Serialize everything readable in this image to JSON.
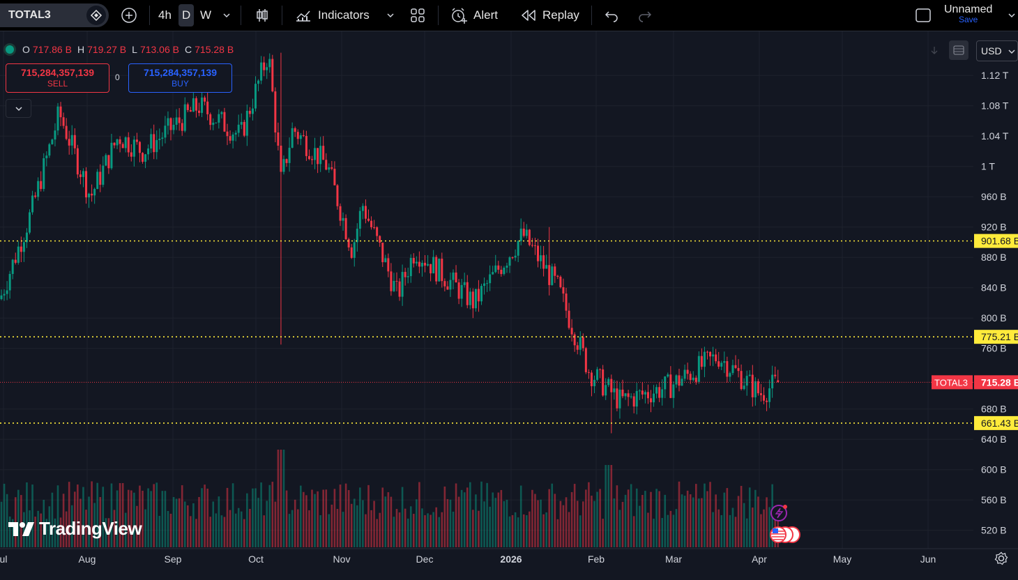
{
  "toolbar": {
    "symbol": "TOTAL3",
    "timeframes": [
      "4h",
      "D",
      "W"
    ],
    "active_timeframe": "D",
    "indicators_label": "Indicators",
    "alert_label": "Alert",
    "replay_label": "Replay",
    "layout_name": "Unnamed",
    "save_label": "Save"
  },
  "legend": {
    "o_label": "O",
    "o_value": "717.86 B",
    "h_label": "H",
    "h_value": "719.27 B",
    "l_label": "L",
    "l_value": "713.06 B",
    "c_label": "C",
    "c_value": "715.28 B"
  },
  "trade": {
    "sell_price": "715,284,357,139",
    "sell_label": "SELL",
    "spread": "0",
    "buy_price": "715,284,357,139",
    "buy_label": "BUY"
  },
  "currency": "USD",
  "logo_text": "TradingView",
  "colors": {
    "up": "#089981",
    "down": "#f23645",
    "level_line": "#ffeb3b",
    "background": "#131722"
  },
  "chart_data": {
    "type": "candlestick",
    "symbol": "TOTAL3",
    "y_unit": "B",
    "ylim": [
      500,
      1160
    ],
    "y_ticks": [
      {
        "value": 1120,
        "label": "1.12 T"
      },
      {
        "value": 1080,
        "label": "1.08 T"
      },
      {
        "value": 1040,
        "label": "1.04 T"
      },
      {
        "value": 1000,
        "label": "1 T"
      },
      {
        "value": 960,
        "label": "960 B"
      },
      {
        "value": 920,
        "label": "920 B"
      },
      {
        "value": 880,
        "label": "880 B"
      },
      {
        "value": 840,
        "label": "840 B"
      },
      {
        "value": 800,
        "label": "800 B"
      },
      {
        "value": 760,
        "label": "760 B"
      },
      {
        "value": 680,
        "label": "680 B"
      },
      {
        "value": 640,
        "label": "640 B"
      },
      {
        "value": 600,
        "label": "600 B"
      },
      {
        "value": 560,
        "label": "560 B"
      },
      {
        "value": 520,
        "label": "520 B"
      }
    ],
    "x_ticks": [
      {
        "label": "ul",
        "bold": false
      },
      {
        "label": "Aug",
        "bold": false
      },
      {
        "label": "Sep",
        "bold": false
      },
      {
        "label": "Oct",
        "bold": false
      },
      {
        "label": "Nov",
        "bold": false
      },
      {
        "label": "Dec",
        "bold": false
      },
      {
        "label": "2026",
        "bold": true
      },
      {
        "label": "Feb",
        "bold": false
      },
      {
        "label": "Mar",
        "bold": false
      },
      {
        "label": "Apr",
        "bold": false
      },
      {
        "label": "May",
        "bold": false
      },
      {
        "label": "Jun",
        "bold": false
      }
    ],
    "horizontal_levels": [
      {
        "value": 901.68,
        "label": "901.68 B"
      },
      {
        "value": 775.21,
        "label": "775.21 B"
      },
      {
        "value": 661.43,
        "label": "661.43 B"
      }
    ],
    "last_price": {
      "value": 715.28,
      "label": "715.28 B",
      "symbol_tag": "TOTAL3"
    },
    "last_candle": {
      "open": 717.86,
      "high": 719.27,
      "low": 713.06,
      "close": 715.28
    },
    "path_keypoints": [
      {
        "month": "Jul",
        "close": 825
      },
      {
        "month": "Jul",
        "close": 940
      },
      {
        "month": "Aug",
        "close": 1070
      },
      {
        "month": "Aug",
        "close": 960
      },
      {
        "month": "Aug",
        "close": 1040
      },
      {
        "month": "Sep",
        "close": 1020
      },
      {
        "month": "Sep",
        "close": 1080
      },
      {
        "month": "Oct",
        "close": 1040
      },
      {
        "month": "Oct",
        "close": 1150
      },
      {
        "month": "Oct",
        "close": 980
      },
      {
        "month": "Oct",
        "close": 1050
      },
      {
        "month": "Nov",
        "close": 1000
      },
      {
        "month": "Nov",
        "close": 890
      },
      {
        "month": "Nov",
        "close": 950
      },
      {
        "month": "Nov",
        "close": 830
      },
      {
        "month": "Dec",
        "close": 890
      },
      {
        "month": "Dec",
        "close": 820
      },
      {
        "month": "Jan",
        "close": 910
      },
      {
        "month": "Jan",
        "close": 840
      },
      {
        "month": "Jan",
        "close": 730
      },
      {
        "month": "Feb",
        "close": 690
      },
      {
        "month": "Mar",
        "close": 710
      },
      {
        "month": "Mar",
        "close": 750
      },
      {
        "month": "Apr",
        "close": 700
      },
      {
        "month": "Apr",
        "close": 715.28
      }
    ]
  }
}
